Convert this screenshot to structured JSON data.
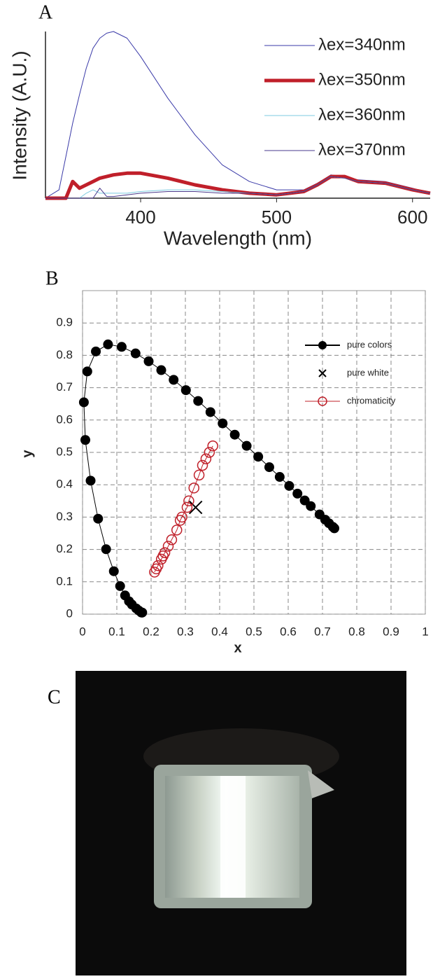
{
  "chart_data": [
    {
      "type": "line",
      "title": "A",
      "x_label": "Wavelength (nm)",
      "y_label": "Intensity (A.U.)",
      "x": [
        330,
        340,
        345,
        350,
        355,
        360,
        365,
        370,
        375,
        380,
        390,
        400,
        420,
        440,
        460,
        480,
        500,
        520,
        530,
        540,
        550,
        560,
        580,
        600,
        613
      ],
      "xlim": [
        330,
        613
      ],
      "xticks": [
        400,
        500,
        600
      ],
      "ylim": [
        0,
        1
      ],
      "series": [
        {
          "name": "λex=340nm",
          "color": "#3a3aa8",
          "width": 1,
          "values": [
            0,
            0.05,
            0.25,
            0.45,
            0.62,
            0.78,
            0.9,
            0.96,
            0.99,
            1.0,
            0.96,
            0.85,
            0.6,
            0.38,
            0.2,
            0.1,
            0.05,
            0.05,
            0.09,
            0.14,
            0.13,
            0.11,
            0.1,
            0.06,
            0.03
          ]
        },
        {
          "name": "λex=350nm",
          "color": "#c01f2a",
          "width": 5,
          "values": [
            0,
            0,
            0,
            0.1,
            0.06,
            0.08,
            0.1,
            0.12,
            0.13,
            0.14,
            0.15,
            0.15,
            0.12,
            0.08,
            0.05,
            0.03,
            0.02,
            0.04,
            0.08,
            0.13,
            0.13,
            0.1,
            0.09,
            0.05,
            0.03
          ]
        },
        {
          "name": "λex=360nm",
          "color": "#7ccbe0",
          "width": 1,
          "values": [
            0,
            0,
            0,
            0,
            0,
            0.03,
            0.05,
            0.03,
            0.03,
            0.03,
            0.03,
            0.04,
            0.05,
            0.05,
            0.04,
            0.03,
            0.02,
            0.04,
            0.08,
            0.13,
            0.12,
            0.1,
            0.09,
            0.05,
            0.03
          ]
        },
        {
          "name": "λex=370nm",
          "color": "#4a3a8c",
          "width": 1,
          "values": [
            0,
            0,
            0,
            0,
            0,
            0,
            0,
            0.06,
            0.01,
            0.01,
            0.02,
            0.03,
            0.04,
            0.04,
            0.03,
            0.03,
            0.02,
            0.04,
            0.08,
            0.13,
            0.12,
            0.1,
            0.09,
            0.05,
            0.03
          ]
        }
      ]
    },
    {
      "type": "scatter",
      "title": "B",
      "x_label": "x",
      "y_label": "y",
      "xlim": [
        0,
        1
      ],
      "xticks": [
        0,
        0.1,
        0.2,
        0.3,
        0.4,
        0.5,
        0.6,
        0.7,
        0.8,
        0.9,
        1
      ],
      "ylim": [
        0,
        1
      ],
      "yticks": [
        0,
        0.1,
        0.2,
        0.3,
        0.4,
        0.5,
        0.6,
        0.7,
        0.8,
        0.9
      ],
      "grid": true,
      "series": [
        {
          "name": "pure colors",
          "color": "#000000",
          "marker": "filled-circle",
          "line": true,
          "x": [
            0.1741,
            0.1733,
            0.1714,
            0.1644,
            0.1566,
            0.144,
            0.1355,
            0.1241,
            0.1096,
            0.0913,
            0.0687,
            0.0454,
            0.0235,
            0.0082,
            0.0039,
            0.0139,
            0.0389,
            0.0743,
            0.1142,
            0.1547,
            0.1929,
            0.2296,
            0.2658,
            0.3016,
            0.3373,
            0.3731,
            0.4087,
            0.4441,
            0.4788,
            0.5125,
            0.5448,
            0.5752,
            0.6029,
            0.627,
            0.6482,
            0.6658,
            0.6915,
            0.7079,
            0.719,
            0.73,
            0.7347
          ],
          "values": [
            0.005,
            0.0048,
            0.0051,
            0.0109,
            0.0177,
            0.0297,
            0.0399,
            0.0578,
            0.0868,
            0.1327,
            0.2007,
            0.295,
            0.4127,
            0.5384,
            0.6548,
            0.7502,
            0.812,
            0.8338,
            0.8262,
            0.8059,
            0.7816,
            0.7543,
            0.7243,
            0.6923,
            0.6589,
            0.6245,
            0.5896,
            0.5547,
            0.5202,
            0.4866,
            0.4544,
            0.4242,
            0.3965,
            0.3725,
            0.3514,
            0.334,
            0.3083,
            0.292,
            0.2809,
            0.27,
            0.2653
          ]
        },
        {
          "name": "pure white",
          "color": "#000000",
          "marker": "cross",
          "line": false,
          "x": [
            0.33
          ],
          "values": [
            0.33
          ]
        },
        {
          "name": "chromaticity",
          "color": "#c0202a",
          "marker": "open-circle",
          "line": true,
          "x": [
            0.21,
            0.215,
            0.22,
            0.23,
            0.235,
            0.24,
            0.25,
            0.26,
            0.275,
            0.285,
            0.29,
            0.305,
            0.31,
            0.325,
            0.34,
            0.35,
            0.36,
            0.37,
            0.38
          ],
          "values": [
            0.13,
            0.14,
            0.15,
            0.17,
            0.18,
            0.19,
            0.21,
            0.23,
            0.26,
            0.29,
            0.3,
            0.33,
            0.35,
            0.39,
            0.43,
            0.46,
            0.48,
            0.5,
            0.52
          ]
        }
      ]
    }
  ],
  "photo": {
    "label": "C"
  }
}
